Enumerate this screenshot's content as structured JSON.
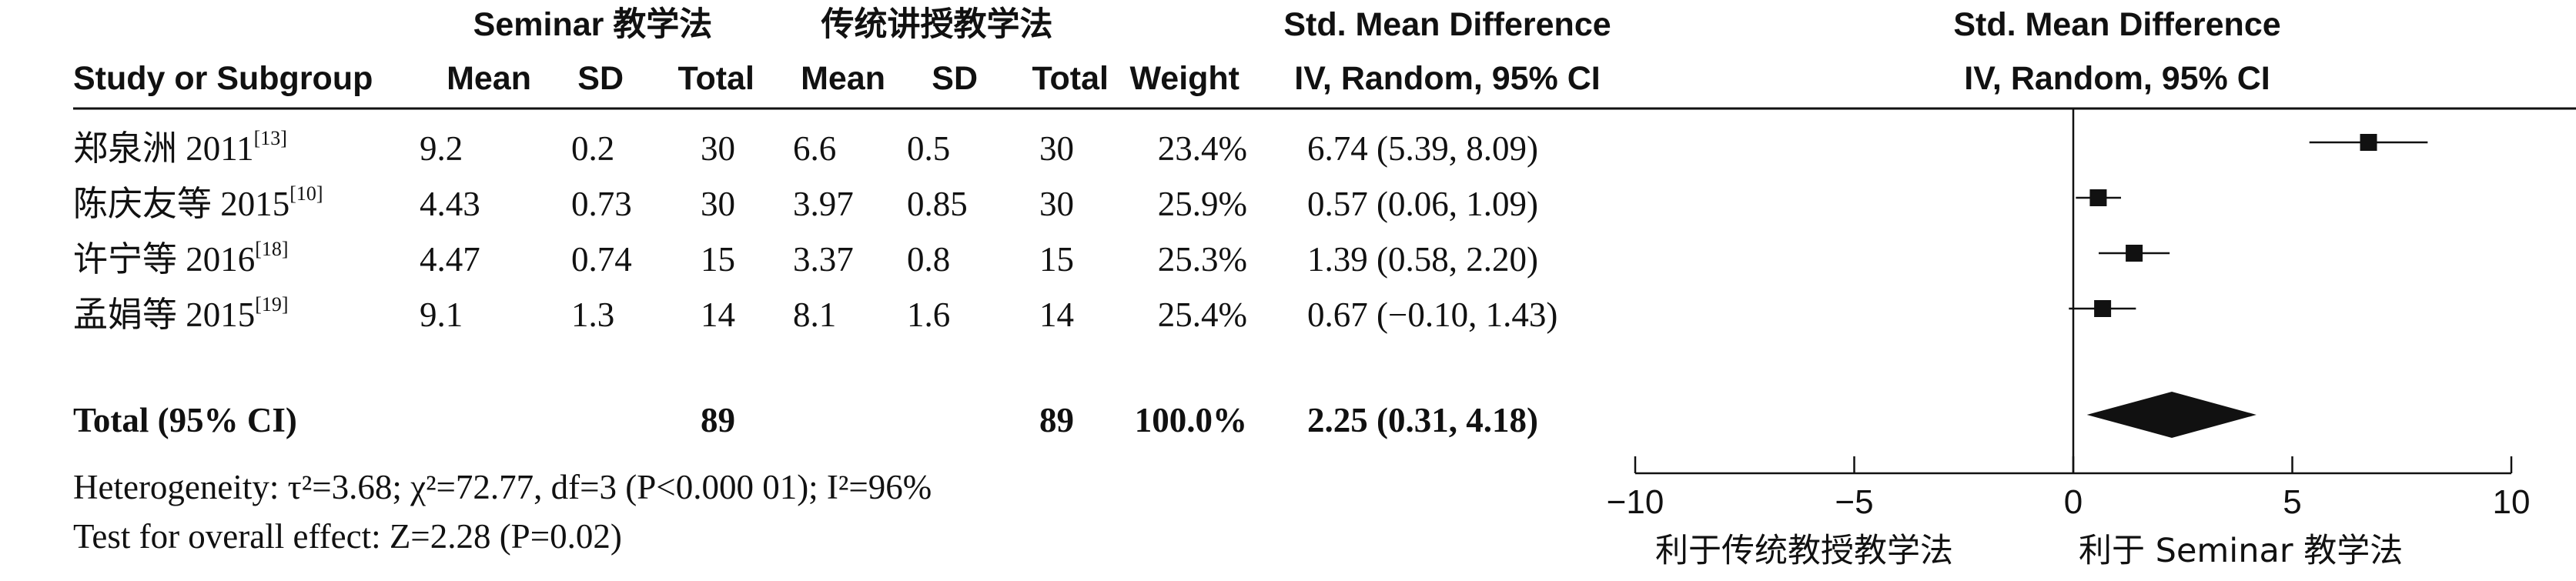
{
  "chart_data": {
    "type": "forest",
    "headers": {
      "group1": "Seminar 教学法",
      "group2": "传统讲授教学法",
      "effect_col": "Std. Mean Difference",
      "effect_sub": "IV, Random, 95% CI",
      "plot_title": "Std. Mean Difference",
      "plot_sub": "IV, Random, 95% CI",
      "study": "Study or Subgroup",
      "mean1": "Mean",
      "sd1": "SD",
      "total1": "Total",
      "mean2": "Mean",
      "sd2": "SD",
      "total2": "Total",
      "weight": "Weight"
    },
    "studies": [
      {
        "name": "郑泉洲 2011",
        "ref": "[13]",
        "mean1": "9.2",
        "sd1": "0.2",
        "total1": "30",
        "mean2": "6.6",
        "sd2": "0.5",
        "total2": "30",
        "weight": "23.4%",
        "ci_text": "6.74 (5.39, 8.09)",
        "est": 6.74,
        "lo": 5.39,
        "hi": 8.09,
        "w": 23.4
      },
      {
        "name": "陈庆友等 2015",
        "ref": "[10]",
        "mean1": "4.43",
        "sd1": "0.73",
        "total1": "30",
        "mean2": "3.97",
        "sd2": "0.85",
        "total2": "30",
        "weight": "25.9%",
        "ci_text": "0.57 (0.06, 1.09)",
        "est": 0.57,
        "lo": 0.06,
        "hi": 1.09,
        "w": 25.9
      },
      {
        "name": "许宁等 2016",
        "ref": "[18]",
        "mean1": "4.47",
        "sd1": "0.74",
        "total1": "15",
        "mean2": "3.37",
        "sd2": "0.8",
        "total2": "15",
        "weight": "25.3%",
        "ci_text": "1.39 (0.58, 2.20)",
        "est": 1.39,
        "lo": 0.58,
        "hi": 2.2,
        "w": 25.3
      },
      {
        "name": "孟娟等 2015",
        "ref": "[19]",
        "mean1": "9.1",
        "sd1": "1.3",
        "total1": "14",
        "mean2": "8.1",
        "sd2": "1.6",
        "total2": "14",
        "weight": "25.4%",
        "ci_text": "0.67 (−0.10, 1.43)",
        "est": 0.67,
        "lo": -0.1,
        "hi": 1.43,
        "w": 25.4
      }
    ],
    "total": {
      "label": "Total (95% CI)",
      "total1": "89",
      "total2": "89",
      "weight": "100.0%",
      "ci_text": "2.25 (0.31, 4.18)",
      "est": 2.25,
      "lo": 0.31,
      "hi": 4.18
    },
    "heterogeneity": "Heterogeneity: τ²=3.68; χ²=72.77, df=3 (P<0.000 01); I²=96%",
    "overall_effect": "Test for overall effect: Z=2.28 (P=0.02)",
    "xaxis": {
      "min": -10,
      "max": 10,
      "ticks": [
        -10,
        -5,
        0,
        5,
        10
      ],
      "tick_labels": [
        "−10",
        "−5",
        "0",
        "5",
        "10"
      ]
    },
    "favours_left": "利于传统教授教学法",
    "favours_right": "利于 Seminar 教学法"
  }
}
